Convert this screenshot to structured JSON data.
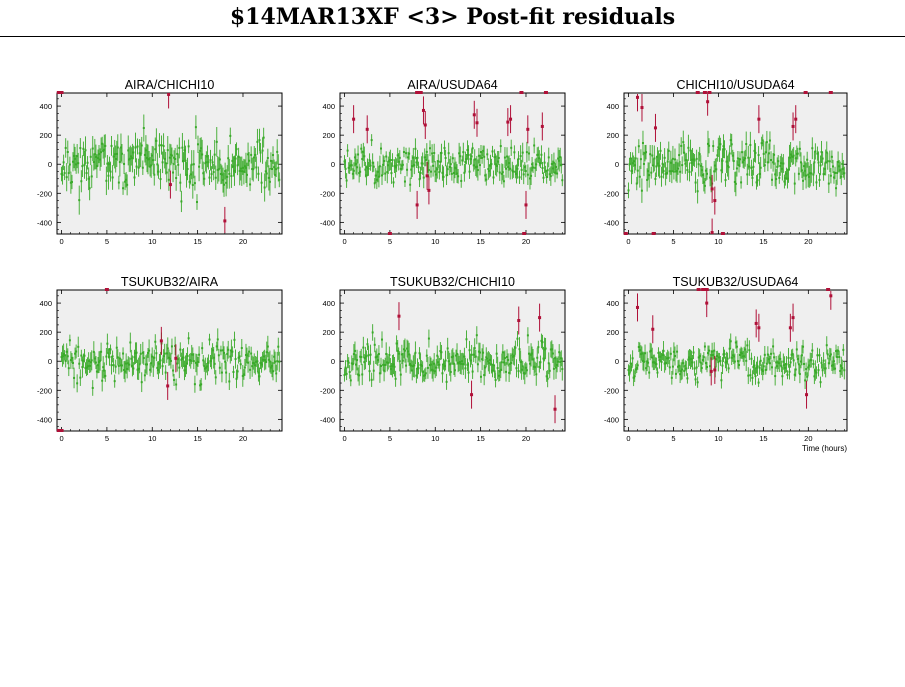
{
  "page_title": "$14MAR13XF <3> Post-fit residuals",
  "colors": {
    "good": "#3aaa2a",
    "flagged": "#b01038",
    "plot_bg": "#efefef"
  },
  "chart_data": [
    {
      "type": "scatter",
      "title": "AIRA/CHICHI10",
      "xlabel": "",
      "xlim": [
        -0.5,
        24.3
      ],
      "ylim": [
        -480,
        490
      ],
      "xticks": [
        0,
        5,
        10,
        15,
        20
      ],
      "yticks": [
        -400,
        -200,
        0,
        200,
        400
      ],
      "series": [
        {
          "values": [],
          "seed": 11,
          "n": 210,
          "sd": 95,
          "err": 75
        },
        {
          "values": [
            [
              12,
              -140
            ],
            [
              18,
              -390
            ],
            [
              11.8,
              480
            ],
            [
              -0.3,
              490
            ],
            [
              0,
              490
            ]
          ]
        }
      ]
    },
    {
      "type": "scatter",
      "title": "AIRA/USUDA64",
      "xlabel": "",
      "xlim": [
        -0.5,
        24.3
      ],
      "ylim": [
        -480,
        490
      ],
      "xticks": [
        0,
        5,
        10,
        15,
        20
      ],
      "yticks": [
        -400,
        -200,
        0,
        200,
        400
      ],
      "series": [
        {
          "values": [],
          "seed": 23,
          "n": 210,
          "sd": 60,
          "err": 55
        },
        {
          "values": [
            [
              1,
              310
            ],
            [
              2.5,
              240
            ],
            [
              8,
              -280
            ],
            [
              8.7,
              370
            ],
            [
              8.9,
              270
            ],
            [
              9.1,
              -80
            ],
            [
              9.3,
              -180
            ],
            [
              14.3,
              340
            ],
            [
              14.6,
              285
            ],
            [
              18,
              290
            ],
            [
              18.3,
              310
            ],
            [
              20,
              -280
            ],
            [
              20.2,
              240
            ],
            [
              21.8,
              260
            ],
            [
              22.2,
              490
            ],
            [
              8,
              490
            ],
            [
              8.4,
              490
            ],
            [
              19.5,
              490
            ],
            [
              5,
              -490
            ],
            [
              19.8,
              -490
            ]
          ]
        }
      ]
    },
    {
      "type": "scatter",
      "title": "CHICHI10/USUDA64",
      "xlabel": "",
      "xlim": [
        -0.5,
        24.3
      ],
      "ylim": [
        -480,
        490
      ],
      "xticks": [
        0,
        5,
        10,
        15,
        20
      ],
      "yticks": [
        -400,
        -200,
        0,
        200,
        400
      ],
      "series": [
        {
          "values": [],
          "seed": 37,
          "n": 210,
          "sd": 80,
          "err": 65
        },
        {
          "values": [
            [
              1,
              460
            ],
            [
              1.5,
              390
            ],
            [
              3,
              250
            ],
            [
              8.8,
              430
            ],
            [
              9.3,
              -170
            ],
            [
              9.6,
              -250
            ],
            [
              9.3,
              -470
            ],
            [
              14.5,
              310
            ],
            [
              18.3,
              260
            ],
            [
              18.6,
              310
            ],
            [
              -0.3,
              -490
            ],
            [
              2.8,
              -490
            ],
            [
              7.7,
              490
            ],
            [
              8.5,
              490
            ],
            [
              9,
              490
            ],
            [
              19.7,
              490
            ],
            [
              22.5,
              490
            ],
            [
              10.5,
              -490
            ]
          ]
        }
      ]
    },
    {
      "type": "scatter",
      "title": "TSUKUB32/AIRA",
      "xlabel": "",
      "xlim": [
        -0.5,
        24.3
      ],
      "ylim": [
        -480,
        490
      ],
      "xticks": [
        0,
        5,
        10,
        15,
        20
      ],
      "yticks": [
        -400,
        -200,
        0,
        200,
        400
      ],
      "series": [
        {
          "values": [],
          "seed": 41,
          "n": 210,
          "sd": 65,
          "err": 55
        },
        {
          "values": [
            [
              11,
              140
            ],
            [
              11.7,
              -170
            ],
            [
              12.6,
              20
            ],
            [
              5,
              490
            ],
            [
              -0.3,
              -490
            ],
            [
              0,
              -490
            ]
          ]
        }
      ]
    },
    {
      "type": "scatter",
      "title": "TSUKUB32/CHICHI10",
      "xlabel": "",
      "xlim": [
        -0.5,
        24.3
      ],
      "ylim": [
        -480,
        490
      ],
      "xticks": [
        0,
        5,
        10,
        15,
        20
      ],
      "yticks": [
        -400,
        -200,
        0,
        200,
        400
      ],
      "series": [
        {
          "values": [],
          "seed": 53,
          "n": 210,
          "sd": 70,
          "err": 60
        },
        {
          "values": [
            [
              6,
              310
            ],
            [
              14,
              -230
            ],
            [
              19.2,
              280
            ],
            [
              21.5,
              300
            ],
            [
              23.2,
              -330
            ]
          ]
        }
      ]
    },
    {
      "type": "scatter",
      "title": "TSUKUB32/USUDA64",
      "xlabel": "Time (hours)",
      "xlim": [
        -0.5,
        24.3
      ],
      "ylim": [
        -480,
        490
      ],
      "xticks": [
        0,
        5,
        10,
        15,
        20
      ],
      "yticks": [
        -400,
        -200,
        0,
        200,
        400
      ],
      "series": [
        {
          "values": [],
          "seed": 67,
          "n": 210,
          "sd": 55,
          "err": 50
        },
        {
          "values": [
            [
              1,
              370
            ],
            [
              2.7,
              220
            ],
            [
              8.7,
              400
            ],
            [
              9.2,
              -70
            ],
            [
              9.6,
              -60
            ],
            [
              14.2,
              260
            ],
            [
              14.5,
              230
            ],
            [
              18,
              230
            ],
            [
              18.3,
              300
            ],
            [
              19.8,
              -230
            ],
            [
              22.5,
              450
            ],
            [
              7.8,
              490
            ],
            [
              8.3,
              490
            ],
            [
              8.7,
              490
            ],
            [
              22.2,
              490
            ]
          ]
        }
      ]
    }
  ]
}
